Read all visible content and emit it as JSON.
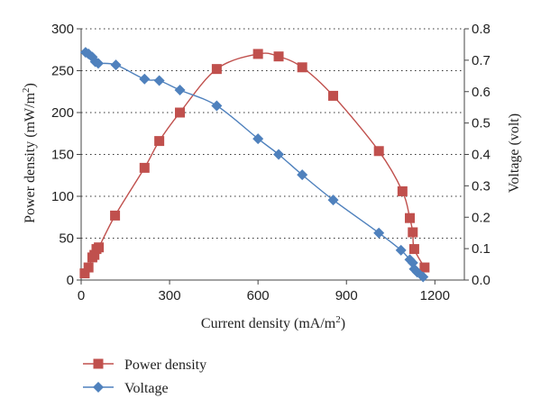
{
  "chart_data": {
    "type": "line",
    "title": "",
    "xlabel": "Current density (mA/m",
    "xlabel_sup": "2",
    "xlabel_end": ")",
    "ylabel_left": "Power density (mW/m",
    "ylabel_left_sup": "2",
    "ylabel_left_end": ")",
    "ylabel_right": "Voltage (volt)",
    "xlim": [
      0,
      1300
    ],
    "ylim_left": [
      0,
      300
    ],
    "ylim_right": [
      0,
      0.8
    ],
    "x_ticks": [
      0,
      300,
      600,
      900,
      1200
    ],
    "y_left_ticks": [
      0,
      50,
      100,
      150,
      200,
      250,
      300
    ],
    "y_right_ticks": [
      "0.0",
      "0.1",
      "0.2",
      "0.3",
      "0.4",
      "0.5",
      "0.6",
      "0.7",
      "0.8"
    ],
    "grid": "horizontal-dotted",
    "legend_position": "bottom-left",
    "series": [
      {
        "name": "Power density",
        "axis": "left",
        "color": "#c0504d",
        "marker": "square",
        "x": [
          12,
          25,
          38,
          45,
          52,
          60,
          115,
          215,
          265,
          335,
          460,
          600,
          670,
          750,
          855,
          1010,
          1090,
          1115,
          1125,
          1130,
          1165
        ],
        "y": [
          8,
          15,
          27,
          30,
          37,
          39,
          77,
          134,
          166,
          200,
          252,
          270,
          267,
          254,
          220,
          154,
          106,
          74,
          57,
          37,
          15
        ]
      },
      {
        "name": "Voltage",
        "axis": "right",
        "color": "#4f81bd",
        "marker": "diamond",
        "x": [
          15,
          25,
          38,
          48,
          58,
          118,
          215,
          265,
          335,
          460,
          600,
          670,
          750,
          855,
          1010,
          1085,
          1115,
          1125,
          1130,
          1140,
          1160
        ],
        "y": [
          0.725,
          0.72,
          0.71,
          0.695,
          0.69,
          0.685,
          0.64,
          0.635,
          0.605,
          0.555,
          0.45,
          0.4,
          0.335,
          0.255,
          0.15,
          0.095,
          0.065,
          0.055,
          0.035,
          0.025,
          0.01
        ]
      }
    ]
  }
}
